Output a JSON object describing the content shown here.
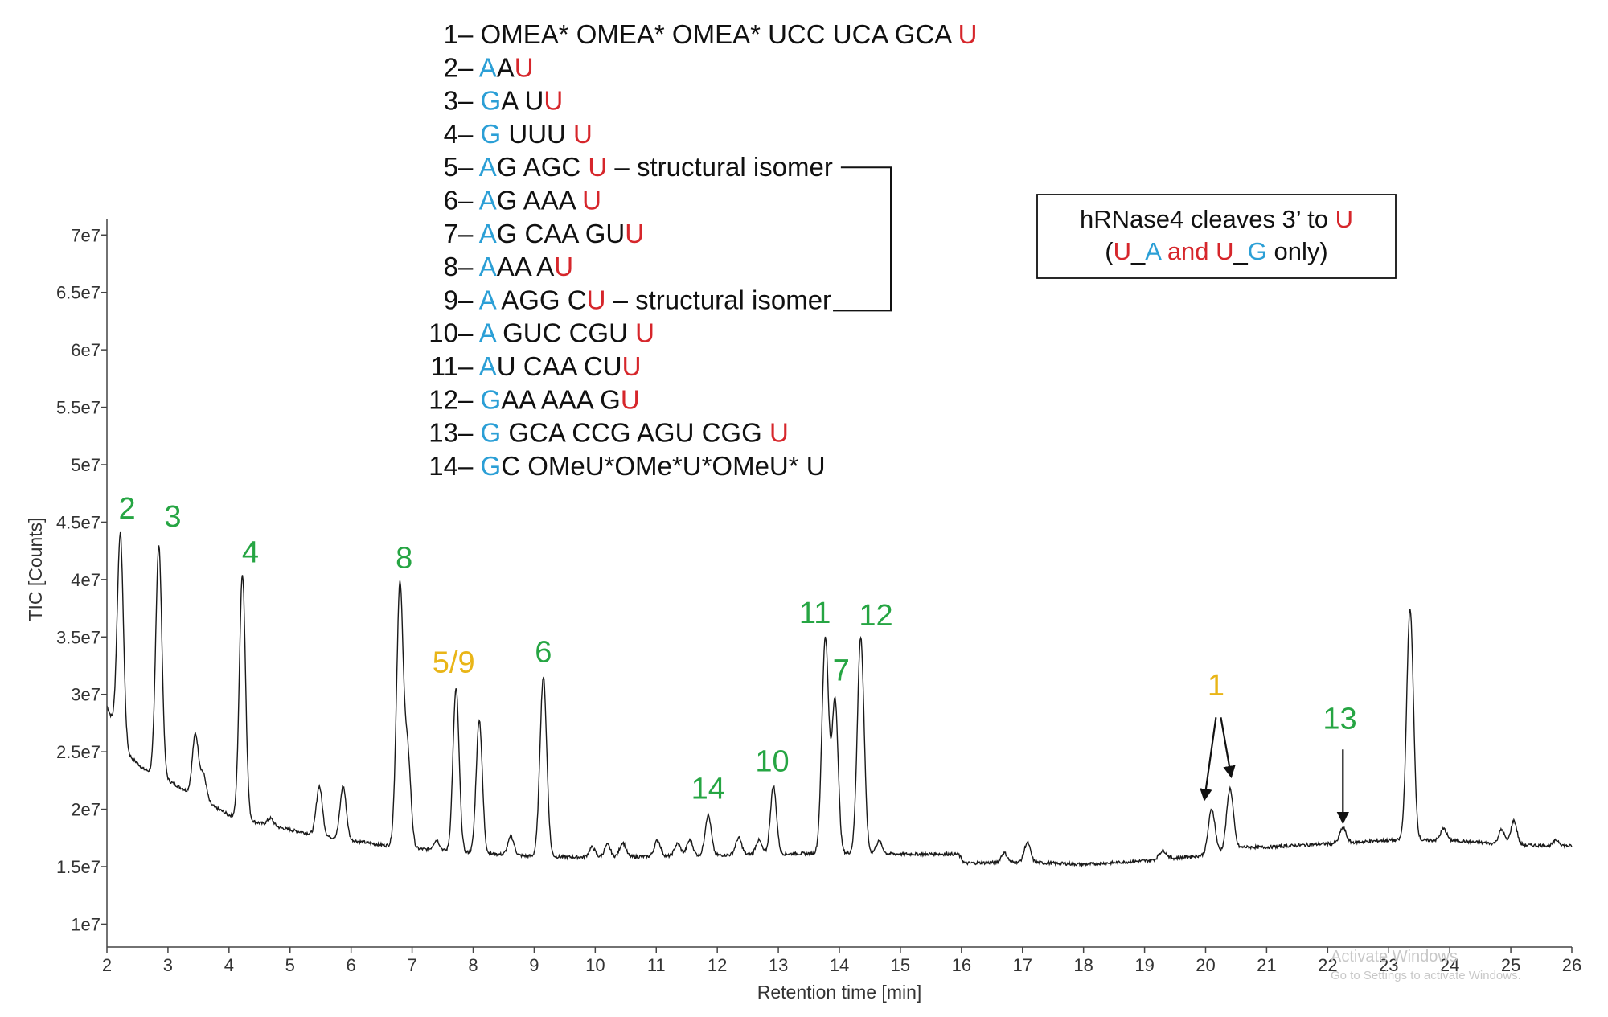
{
  "colors": {
    "green": "#26a543",
    "yellow": "#e9b517",
    "blue": "#2b9fd6",
    "red": "#d6262b",
    "text": "#111111",
    "trace": "#1a1a1a"
  },
  "chart_data": {
    "type": "line",
    "title": "",
    "xlabel": "Retention time [min]",
    "ylabel": "TIC [Counts]",
    "xlim": [
      2,
      26
    ],
    "ylim": [
      8000000,
      71000000
    ],
    "x_ticks": [
      2,
      3,
      4,
      5,
      6,
      7,
      8,
      9,
      10,
      11,
      12,
      13,
      14,
      15,
      16,
      17,
      18,
      19,
      20,
      21,
      22,
      23,
      24,
      25,
      26
    ],
    "y_ticks": [
      10000000,
      15000000,
      20000000,
      25000000,
      30000000,
      35000000,
      40000000,
      45000000,
      50000000,
      55000000,
      60000000,
      65000000,
      70000000
    ],
    "y_tick_labels": [
      "1e7",
      "1.5e7",
      "2e7",
      "2.5e7",
      "3e7",
      "3.5e7",
      "4e7",
      "4.5e7",
      "5e7",
      "5.5e7",
      "6e7",
      "6.5e7",
      "7e7"
    ],
    "grid": false,
    "baseline_points": [
      [
        2.0,
        29000000
      ],
      [
        2.1,
        27500000
      ],
      [
        2.3,
        25000000
      ],
      [
        2.6,
        23500000
      ],
      [
        3.0,
        22500000
      ],
      [
        3.5,
        21000000
      ],
      [
        4.0,
        19500000
      ],
      [
        4.5,
        18800000
      ],
      [
        5.0,
        18200000
      ],
      [
        5.5,
        17700000
      ],
      [
        6.0,
        17300000
      ],
      [
        6.5,
        16900000
      ],
      [
        7.0,
        16600000
      ],
      [
        8.0,
        16200000
      ],
      [
        9.0,
        15900000
      ],
      [
        10.0,
        15800000
      ],
      [
        11.0,
        15900000
      ],
      [
        12.0,
        16000000
      ],
      [
        13.0,
        16100000
      ],
      [
        14.0,
        16200000
      ],
      [
        15.0,
        16100000
      ],
      [
        15.95,
        16100000
      ],
      [
        16.05,
        15300000
      ],
      [
        17.0,
        15400000
      ],
      [
        18.0,
        15200000
      ],
      [
        19.0,
        15500000
      ],
      [
        20.0,
        16000000
      ],
      [
        20.6,
        16700000
      ],
      [
        21.0,
        16700000
      ],
      [
        22.0,
        17000000
      ],
      [
        23.0,
        17300000
      ],
      [
        24.0,
        17300000
      ],
      [
        25.0,
        16900000
      ],
      [
        26.0,
        16800000
      ]
    ],
    "peaks": [
      {
        "x": 2.22,
        "height": 44000000,
        "width": 0.05
      },
      {
        "x": 2.85,
        "height": 43000000,
        "width": 0.05
      },
      {
        "x": 3.45,
        "height": 26500000,
        "width": 0.05
      },
      {
        "x": 3.58,
        "height": 23000000,
        "width": 0.05
      },
      {
        "x": 3.95,
        "height": 19500000,
        "width": 0.05
      },
      {
        "x": 4.22,
        "height": 40500000,
        "width": 0.05
      },
      {
        "x": 4.68,
        "height": 19200000,
        "width": 0.05
      },
      {
        "x": 5.48,
        "height": 22000000,
        "width": 0.05
      },
      {
        "x": 5.87,
        "height": 22000000,
        "width": 0.05
      },
      {
        "x": 6.8,
        "height": 39500000,
        "width": 0.055
      },
      {
        "x": 6.93,
        "height": 24500000,
        "width": 0.05
      },
      {
        "x": 7.4,
        "height": 17300000,
        "width": 0.05
      },
      {
        "x": 7.72,
        "height": 30500000,
        "width": 0.05
      },
      {
        "x": 8.1,
        "height": 27800000,
        "width": 0.05
      },
      {
        "x": 8.62,
        "height": 17600000,
        "width": 0.05
      },
      {
        "x": 9.15,
        "height": 31500000,
        "width": 0.055
      },
      {
        "x": 9.95,
        "height": 16700000,
        "width": 0.05
      },
      {
        "x": 10.2,
        "height": 16900000,
        "width": 0.05
      },
      {
        "x": 10.45,
        "height": 17100000,
        "width": 0.05
      },
      {
        "x": 11.02,
        "height": 17300000,
        "width": 0.05
      },
      {
        "x": 11.35,
        "height": 17000000,
        "width": 0.05
      },
      {
        "x": 11.55,
        "height": 17300000,
        "width": 0.05
      },
      {
        "x": 11.85,
        "height": 19500000,
        "width": 0.05
      },
      {
        "x": 12.35,
        "height": 17500000,
        "width": 0.05
      },
      {
        "x": 12.68,
        "height": 17300000,
        "width": 0.05
      },
      {
        "x": 12.92,
        "height": 22000000,
        "width": 0.05
      },
      {
        "x": 13.77,
        "height": 35000000,
        "width": 0.055
      },
      {
        "x": 13.93,
        "height": 29500000,
        "width": 0.05
      },
      {
        "x": 14.35,
        "height": 35000000,
        "width": 0.055
      },
      {
        "x": 14.65,
        "height": 17200000,
        "width": 0.05
      },
      {
        "x": 16.7,
        "height": 16200000,
        "width": 0.05
      },
      {
        "x": 17.08,
        "height": 17100000,
        "width": 0.05
      },
      {
        "x": 19.3,
        "height": 16400000,
        "width": 0.06
      },
      {
        "x": 20.1,
        "height": 20000000,
        "width": 0.055
      },
      {
        "x": 20.4,
        "height": 21800000,
        "width": 0.055
      },
      {
        "x": 22.25,
        "height": 18400000,
        "width": 0.05
      },
      {
        "x": 23.35,
        "height": 37500000,
        "width": 0.055
      },
      {
        "x": 23.9,
        "height": 18300000,
        "width": 0.05
      },
      {
        "x": 24.85,
        "height": 18200000,
        "width": 0.05
      },
      {
        "x": 25.05,
        "height": 19000000,
        "width": 0.05
      },
      {
        "x": 25.75,
        "height": 17300000,
        "width": 0.05
      }
    ],
    "peak_labels": [
      {
        "text": "2",
        "x": 2.33,
        "y": 45300000,
        "color": "green"
      },
      {
        "text": "3",
        "x": 3.08,
        "y": 44600000,
        "color": "green"
      },
      {
        "text": "4",
        "x": 4.35,
        "y": 41500000,
        "color": "green"
      },
      {
        "text": "8",
        "x": 6.87,
        "y": 41000000,
        "color": "green"
      },
      {
        "text": "5/9",
        "x": 7.68,
        "y": 31900000,
        "color": "yellow"
      },
      {
        "text": "6",
        "x": 9.15,
        "y": 32800000,
        "color": "green"
      },
      {
        "text": "14",
        "x": 11.85,
        "y": 20900000,
        "color": "green"
      },
      {
        "text": "10",
        "x": 12.9,
        "y": 23300000,
        "color": "green"
      },
      {
        "text": "11",
        "x": 13.6,
        "y": 36200000,
        "color": "green"
      },
      {
        "text": "7",
        "x": 14.03,
        "y": 31200000,
        "color": "green"
      },
      {
        "text": "12",
        "x": 14.6,
        "y": 36000000,
        "color": "green"
      },
      {
        "text": "1",
        "x": 20.17,
        "y": 29900000,
        "color": "yellow"
      },
      {
        "text": "13",
        "x": 22.2,
        "y": 27000000,
        "color": "green"
      }
    ],
    "arrows": [
      {
        "x1": 20.17,
        "y1": 28000000,
        "x2": 19.98,
        "y2": 20800000
      },
      {
        "x1": 20.25,
        "y1": 28000000,
        "x2": 20.42,
        "y2": 22800000
      },
      {
        "x1": 22.25,
        "y1": 25200000,
        "x2": 22.25,
        "y2": 18800000
      }
    ]
  },
  "legend": [
    {
      "num": "1",
      "num_color": "yellow",
      "parts": [
        [
          "OMEA* OMEA* OMEA* UCC UCA GCA ",
          "text"
        ],
        [
          "U",
          "red"
        ]
      ]
    },
    {
      "num": "2",
      "num_color": "green",
      "parts": [
        [
          "A",
          "blue"
        ],
        [
          "A",
          "text"
        ],
        [
          "U",
          "red"
        ]
      ]
    },
    {
      "num": "3",
      "num_color": "green",
      "parts": [
        [
          "G",
          "blue"
        ],
        [
          "A U",
          "text"
        ],
        [
          "U",
          "red"
        ]
      ]
    },
    {
      "num": "4",
      "num_color": "green",
      "parts": [
        [
          "G",
          "blue"
        ],
        [
          " UUU ",
          "text"
        ],
        [
          "U",
          "red"
        ]
      ]
    },
    {
      "num": "5",
      "num_color": "yellow",
      "parts": [
        [
          "A",
          "blue"
        ],
        [
          "G AGC ",
          "text"
        ],
        [
          "U",
          "red"
        ],
        [
          " – structural isomer",
          "text"
        ]
      ]
    },
    {
      "num": "6",
      "num_color": "green",
      "parts": [
        [
          "A",
          "blue"
        ],
        [
          "G AAA ",
          "text"
        ],
        [
          "U",
          "red"
        ]
      ]
    },
    {
      "num": "7",
      "num_color": "green",
      "parts": [
        [
          "A",
          "blue"
        ],
        [
          "G CAA GU",
          "text"
        ],
        [
          "U",
          "red"
        ]
      ]
    },
    {
      "num": "8",
      "num_color": "green",
      "parts": [
        [
          "A",
          "blue"
        ],
        [
          "AA A",
          "text"
        ],
        [
          "U",
          "red"
        ]
      ]
    },
    {
      "num": "9",
      "num_color": "yellow",
      "parts": [
        [
          "A",
          "blue"
        ],
        [
          " AGG C",
          "text"
        ],
        [
          "U",
          "red"
        ],
        [
          " – structural isomer",
          "text"
        ]
      ]
    },
    {
      "num": "10",
      "num_color": "green",
      "parts": [
        [
          "A",
          "blue"
        ],
        [
          " GUC CGU ",
          "text"
        ],
        [
          "U",
          "red"
        ]
      ]
    },
    {
      "num": "11",
      "num_color": "green",
      "parts": [
        [
          "A",
          "blue"
        ],
        [
          "U CAA CU",
          "text"
        ],
        [
          "U",
          "red"
        ]
      ]
    },
    {
      "num": "12",
      "num_color": "green",
      "parts": [
        [
          "G",
          "blue"
        ],
        [
          "AA AAA G",
          "text"
        ],
        [
          "U",
          "red"
        ]
      ]
    },
    {
      "num": "13",
      "num_color": "green",
      "parts": [
        [
          "G",
          "blue"
        ],
        [
          " GCA CCG AGU CGG ",
          "text"
        ],
        [
          "U",
          "red"
        ]
      ]
    },
    {
      "num": "14",
      "num_color": "green",
      "parts": [
        [
          "G",
          "blue"
        ],
        [
          "C OMeU*OMe*U*OMeU* U",
          "text"
        ]
      ]
    }
  ],
  "legend_dash": " – ",
  "info_box": {
    "line1": [
      [
        "hRNase4  cleaves 3’ to ",
        "text"
      ],
      [
        "U",
        "red"
      ]
    ],
    "line2": [
      [
        "(",
        "text"
      ],
      [
        "U",
        "red"
      ],
      [
        "_",
        "text"
      ],
      [
        "A",
        "blue"
      ],
      [
        " and ",
        "red"
      ],
      [
        "U",
        "red"
      ],
      [
        "_",
        "text"
      ],
      [
        "G",
        "blue"
      ],
      [
        " only)",
        "text"
      ]
    ]
  },
  "watermark": {
    "line1": "Activate Windows",
    "line2": "Go to Settings to activate Windows."
  }
}
